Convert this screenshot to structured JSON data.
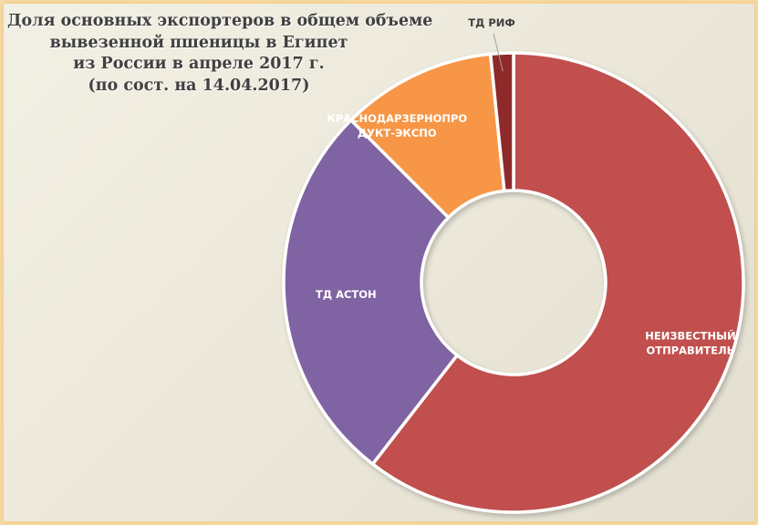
{
  "title_lines": [
    "Доля основных экспортеров в общем объеме",
    "вывезенной пшеницы в Египет",
    "из России в апреле 2017 г.",
    "(по сост.  на 14.04.2017)"
  ],
  "chart_data": {
    "type": "pie",
    "style": "donut",
    "title": "Доля основных экспортеров в общем объеме вывезенной пшеницы в Египет из России в апреле 2017 г. (по сост.  на 14.04.2017)",
    "legend": "none",
    "slices": [
      {
        "label": "НЕИЗВЕСТНЫЙ ОТПРАВИТЕЛЬ",
        "label_lines": [
          "НЕИЗВЕСТНЫЙ",
          "ОТПРАВИТЕЛЬ"
        ],
        "value": 60.5,
        "color": "#c0504d",
        "label_position": "inside"
      },
      {
        "label": "ТД АСТОН",
        "label_lines": [
          "ТД АСТОН"
        ],
        "value": 27.0,
        "color": "#8064a2",
        "label_position": "inside"
      },
      {
        "label": "КРАСНОДАРЗЕРНОПРОДУКТ-ЭКСПО",
        "label_lines": [
          "КРАСНОДАРЗЕРНОПРО",
          "ДУКТ-ЭКСПО"
        ],
        "value": 10.9,
        "color": "#f79646",
        "label_position": "inside"
      },
      {
        "label": "ТД РИФ",
        "label_lines": [
          "ТД РИФ"
        ],
        "value": 1.6,
        "color": "#8e2a2a",
        "label_position": "outside"
      }
    ]
  }
}
